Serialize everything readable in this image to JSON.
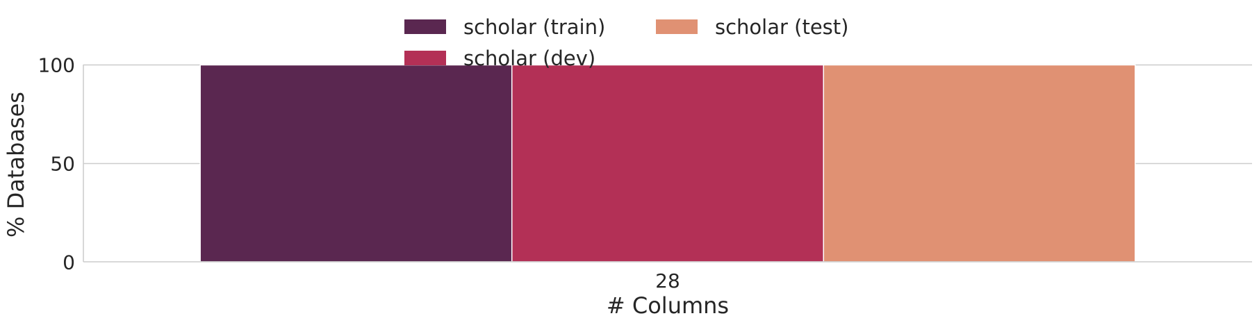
{
  "chart_data": {
    "type": "bar",
    "categories": [
      "28"
    ],
    "series": [
      {
        "name": "scholar (train)",
        "values": [
          100
        ],
        "color": "#5a2750"
      },
      {
        "name": "scholar (dev)",
        "values": [
          100
        ],
        "color": "#b33056"
      },
      {
        "name": "scholar (test)",
        "values": [
          100
        ],
        "color": "#e09173"
      }
    ],
    "xlabel": "# Columns",
    "ylabel": "% Databases",
    "ylim": [
      0,
      100
    ],
    "yticks": [
      0,
      50,
      100
    ],
    "grid": "horizontal",
    "legend_position": "top-center"
  }
}
